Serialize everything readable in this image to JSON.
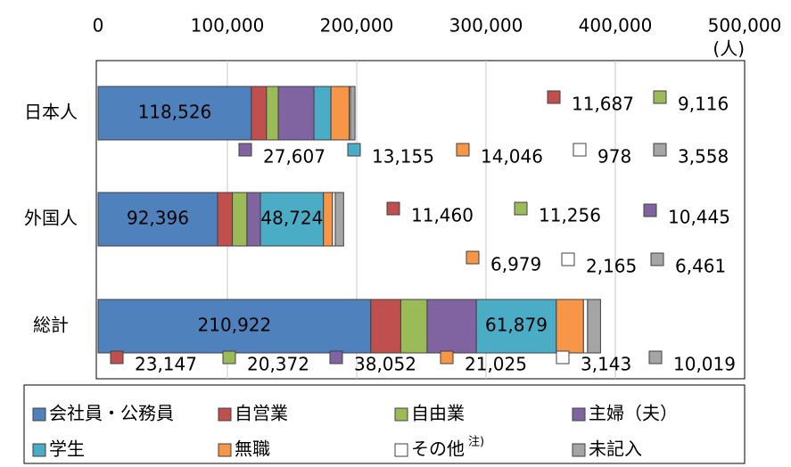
{
  "chart_data": {
    "type": "stacked-barh",
    "unit": "(人)",
    "categories": [
      "日本人",
      "外国人",
      "総計"
    ],
    "series": [
      {
        "name": "会社員・公務員",
        "color": "#4f81bd",
        "values": [
          118526,
          92396,
          210922
        ],
        "value_labels": [
          "118,526",
          "92,396",
          "210,922"
        ]
      },
      {
        "name": "自営業",
        "color": "#c0504d",
        "values": [
          11687,
          11460,
          23147
        ],
        "value_labels": [
          "11,687",
          "11,460",
          "23,147"
        ]
      },
      {
        "name": "自由業",
        "color": "#9bbb59",
        "values": [
          9116,
          11256,
          20372
        ],
        "value_labels": [
          "9,116",
          "11,256",
          "20,372"
        ]
      },
      {
        "name": "主婦（夫）",
        "color": "#8064a2",
        "values": [
          27607,
          10445,
          38052
        ],
        "value_labels": [
          "27,607",
          "10,445",
          "38,052"
        ]
      },
      {
        "name": "学生",
        "color": "#4bacc6",
        "values": [
          13155,
          48724,
          61879
        ],
        "value_labels": [
          "13,155",
          "48,724",
          "61,879"
        ]
      },
      {
        "name": "無職",
        "color": "#f79646",
        "values": [
          14046,
          6979,
          21025
        ],
        "value_labels": [
          "14,046",
          "6,979",
          "21,025"
        ]
      },
      {
        "name": "その他",
        "note": "注)",
        "color": "#ffffff",
        "values": [
          978,
          2165,
          3143
        ],
        "value_labels": [
          "978",
          "2,165",
          "3,143"
        ]
      },
      {
        "name": "未記入",
        "color": "#a5a5a5",
        "values": [
          3558,
          6461,
          10019
        ],
        "value_labels": [
          "3,558",
          "6,461",
          "10,019"
        ]
      }
    ],
    "xlim": [
      0,
      500000
    ],
    "xticks": [
      0,
      {
        "value": 100000,
        "label": "100,000"
      },
      {
        "value": 200000,
        "label": "200,000"
      },
      {
        "value": 300000,
        "label": "300,000"
      },
      {
        "value": 400000,
        "label": "400,000"
      },
      {
        "value": 500000,
        "label": "500,000"
      }
    ],
    "grid": true
  }
}
